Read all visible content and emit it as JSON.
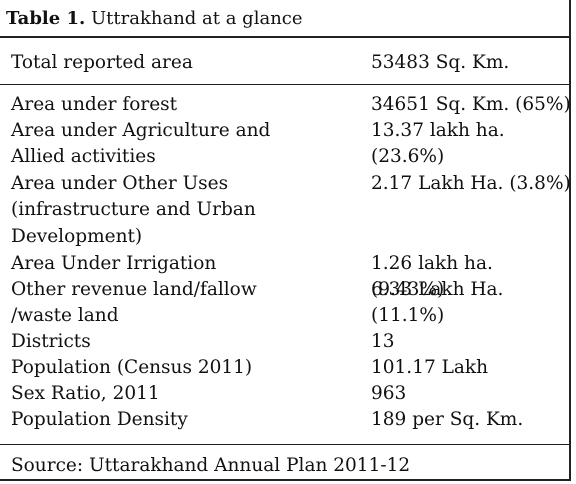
{
  "table": {
    "title_bold": "Table 1.",
    "title_rest": " Uttrakhand at a glance",
    "header_row": {
      "label": "Total reported area",
      "value": "53483 Sq. Km."
    },
    "rows": [
      {
        "label": "Area under forest",
        "value": "34651 Sq. Km. (65%)"
      },
      {
        "label": "Area under Agriculture and Allied activities",
        "value": "13.37 lakh ha. (23.6%)"
      },
      {
        "label": "Area under Other Uses (infrastructure and Urban Development)",
        "value": "2.17 Lakh Ha. (3.8%)"
      },
      {
        "label": "Area Under Irrigation",
        "value": "1.26 lakh ha. (9.43%)"
      },
      {
        "label": "Other revenue land/fallow /waste land",
        "value": "6.33 Lakh Ha. (11.1%)"
      },
      {
        "label": "Districts",
        "value": "13"
      },
      {
        "label": "Population (Census 2011)",
        "value": "101.17 Lakh"
      },
      {
        "label": "Sex Ratio, 2011",
        "value": "963"
      },
      {
        "label": "Population Density",
        "value": "189 per Sq. Km."
      }
    ],
    "source": "Source: Uttarakhand Annual Plan 2011-12"
  }
}
